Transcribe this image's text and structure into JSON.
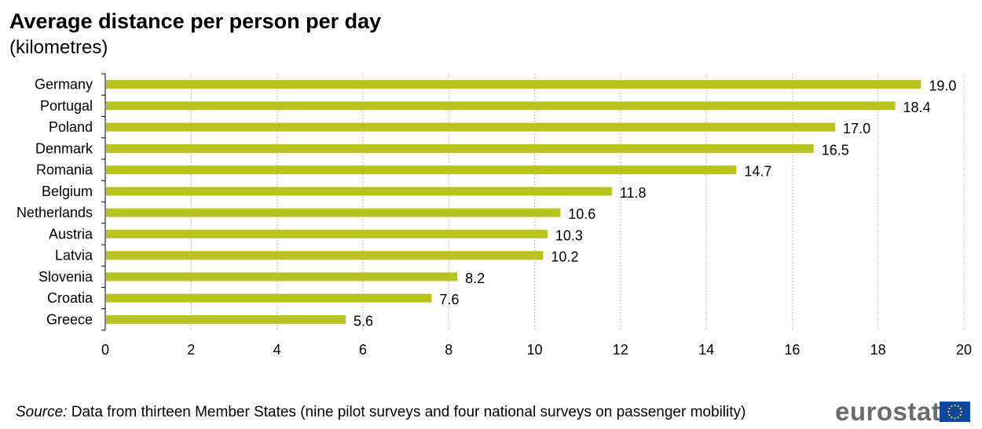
{
  "chart_data": {
    "type": "bar",
    "orientation": "horizontal",
    "title": "Average distance per person per day",
    "subtitle": "(kilometres)",
    "categories": [
      "Germany",
      "Portugal",
      "Poland",
      "Denmark",
      "Romania",
      "Belgium",
      "Netherlands",
      "Austria",
      "Latvia",
      "Slovenia",
      "Croatia",
      "Greece"
    ],
    "values": [
      19.0,
      18.4,
      17.0,
      16.5,
      14.7,
      11.8,
      10.6,
      10.3,
      10.2,
      8.2,
      7.6,
      5.6
    ],
    "value_labels": [
      "19.0",
      "18.4",
      "17.0",
      "16.5",
      "14.7",
      "11.8",
      "10.6",
      "10.3",
      "10.2",
      "8.2",
      "7.6",
      "5.6"
    ],
    "xlim": [
      0,
      20
    ],
    "x_ticks": [
      0,
      2,
      4,
      6,
      8,
      10,
      12,
      14,
      16,
      18,
      20
    ],
    "grid": "vertical dashed",
    "bar_color": "#b9c31e"
  },
  "footer": {
    "source_label": "Source:",
    "source_text": " Data from thirteen Member States (nine pilot surveys and four national surveys on passenger mobility)"
  },
  "logo": {
    "text": "eurostat",
    "icon": "eu-flag-icon"
  }
}
